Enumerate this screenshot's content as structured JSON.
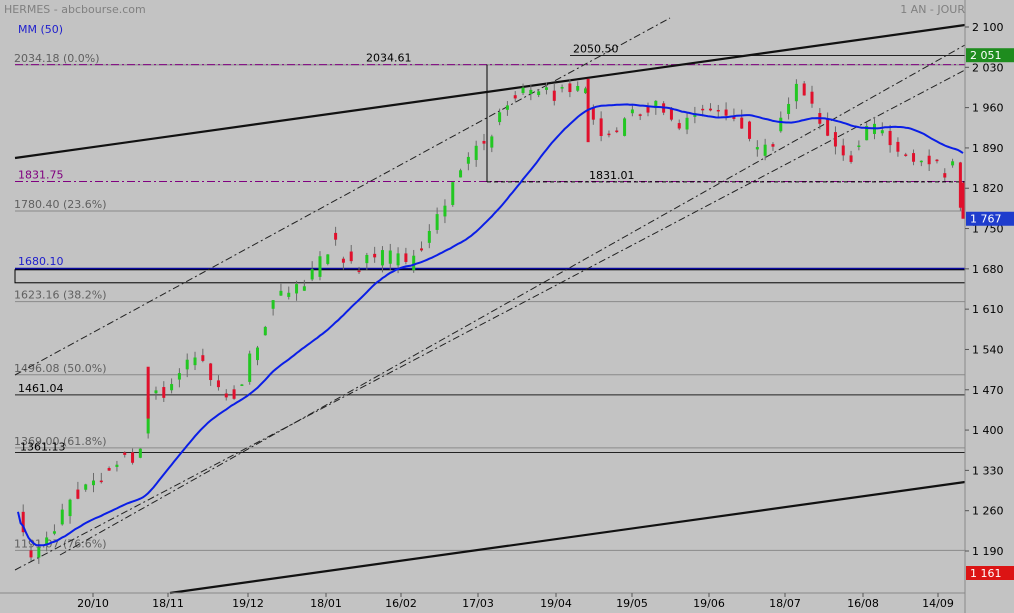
{
  "header": {
    "title": "HERMES - abcbourse.com",
    "period": "1 AN - JOUR",
    "indicator": "MM (50)"
  },
  "colors": {
    "background": "#c3c3c3",
    "up": "#22c722",
    "down": "#e0102c",
    "ma": "#0a1ee6",
    "purple": "#800080",
    "navy": "#0a0aa0",
    "label_green": "#1e8c1e",
    "label_blue": "#1e3ccd",
    "label_red": "#dc1414"
  },
  "chart_data": {
    "type": "candlestick",
    "title": "HERMES - abcbourse.com",
    "ylim": [
      1150,
      2115
    ],
    "x_ticks": [
      "20/10",
      "18/11",
      "19/12",
      "18/01",
      "16/02",
      "17/03",
      "19/04",
      "19/05",
      "19/06",
      "18/07",
      "16/08",
      "14/09"
    ],
    "y_ticks": [
      "2 100",
      "2 030",
      "1 960",
      "1 890",
      "1 820",
      "1 750",
      "1 680",
      "1 610",
      "1 540",
      "1 470",
      "1 400",
      "1 330",
      "1 260",
      "1 190"
    ],
    "y_tick_values": [
      2100,
      2030,
      1960,
      1890,
      1820,
      1750,
      1680,
      1610,
      1540,
      1470,
      1400,
      1330,
      1260,
      1190
    ],
    "price_labels": [
      {
        "text": "2 051",
        "value": 2051,
        "color": "label_green"
      },
      {
        "text": "1 767",
        "value": 1767,
        "color": "label_blue"
      },
      {
        "text": "1 161",
        "value": 1161,
        "color": "label_red"
      }
    ],
    "close_anchors": [
      [
        0,
        1258
      ],
      [
        2,
        1210
      ],
      [
        5,
        1172
      ],
      [
        10,
        1200
      ],
      [
        15,
        1240
      ],
      [
        20,
        1280
      ],
      [
        25,
        1300
      ],
      [
        30,
        1300
      ],
      [
        35,
        1340
      ],
      [
        40,
        1350
      ],
      [
        45,
        1350
      ],
      [
        47,
        1370
      ],
      [
        50,
        1470
      ],
      [
        55,
        1460
      ],
      [
        60,
        1490
      ],
      [
        65,
        1510
      ],
      [
        70,
        1530
      ],
      [
        75,
        1480
      ],
      [
        80,
        1460
      ],
      [
        85,
        1470
      ],
      [
        90,
        1530
      ],
      [
        95,
        1590
      ],
      [
        100,
        1630
      ],
      [
        105,
        1650
      ],
      [
        110,
        1650
      ],
      [
        115,
        1680
      ],
      [
        120,
        1730
      ],
      [
        125,
        1700
      ],
      [
        130,
        1680
      ],
      [
        135,
        1700
      ],
      [
        140,
        1700
      ],
      [
        145,
        1700
      ],
      [
        150,
        1680
      ],
      [
        155,
        1720
      ],
      [
        160,
        1760
      ],
      [
        165,
        1800
      ],
      [
        170,
        1840
      ],
      [
        175,
        1890
      ],
      [
        180,
        1900
      ],
      [
        185,
        1950
      ],
      [
        190,
        1980
      ],
      [
        195,
        1990
      ],
      [
        200,
        1980
      ],
      [
        205,
        1985
      ],
      [
        210,
        1990
      ],
      [
        215,
        2010
      ],
      [
        220,
        1960
      ],
      [
        225,
        1900
      ],
      [
        230,
        1920
      ],
      [
        235,
        1940
      ],
      [
        240,
        1960
      ],
      [
        245,
        1970
      ],
      [
        250,
        1960
      ],
      [
        255,
        1930
      ],
      [
        260,
        1940
      ],
      [
        265,
        1960
      ],
      [
        270,
        1950
      ],
      [
        275,
        1930
      ],
      [
        280,
        1920
      ],
      [
        285,
        1870
      ],
      [
        290,
        1900
      ],
      [
        295,
        1950
      ],
      [
        300,
        2000
      ],
      [
        305,
        1970
      ],
      [
        310,
        1920
      ],
      [
        315,
        1900
      ],
      [
        320,
        1880
      ],
      [
        325,
        1920
      ],
      [
        330,
        1930
      ],
      [
        335,
        1900
      ],
      [
        340,
        1870
      ],
      [
        345,
        1880
      ],
      [
        350,
        1870
      ],
      [
        355,
        1850
      ],
      [
        360,
        1860
      ],
      [
        363,
        1767
      ]
    ],
    "annotations": [
      {
        "text": "2034.61",
        "value": 2034.61,
        "style": "purple-dashdot"
      },
      {
        "text": "2050.50",
        "value": 2050.5,
        "style": "thin-black"
      },
      {
        "text": "1831.75",
        "value": 1831.75,
        "style": "purple-dashdot"
      },
      {
        "text": "1831.01",
        "value": 1831.01,
        "style": "black-dashed"
      },
      {
        "text": "1680.10",
        "value": 1680.1,
        "style": "navy-thick"
      },
      {
        "text": "1461.04",
        "value": 1461.04,
        "style": "black-line"
      },
      {
        "text": "1361.13",
        "value": 1361.13,
        "style": "black-line"
      }
    ],
    "fibonacci": [
      {
        "text": "2034.18 (0.0%)",
        "value": 2034.18
      },
      {
        "text": "1780.40 (23.6%)",
        "value": 1780.4
      },
      {
        "text": "1623.16 (38.2%)",
        "value": 1623.16
      },
      {
        "text": "1496.08 (50.0%)",
        "value": 1496.08
      },
      {
        "text": "1369.00 (61.8%)",
        "value": 1369.0
      },
      {
        "text": "1191.07 (76.6%)",
        "value": 1191.07
      }
    ]
  }
}
